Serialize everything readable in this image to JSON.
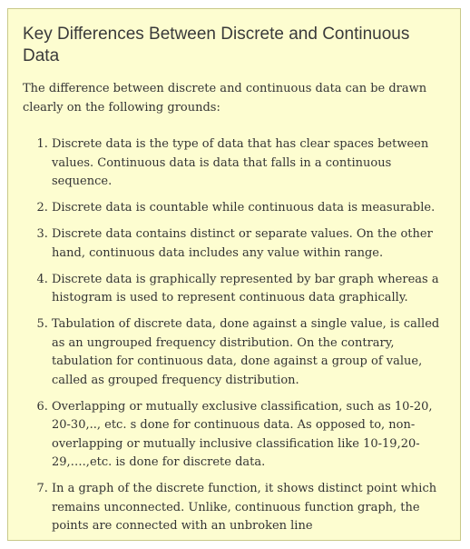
{
  "heading": "Key Differences Between Discrete and Continuous Data",
  "intro": "The difference between discrete and continuous data can be drawn clearly on the following grounds:",
  "points": [
    "Discrete data is the type of data that has clear spaces between values. Continuous data is data that falls in a continuous sequence.",
    "Discrete data is countable while continuous data is measurable.",
    "Discrete data contains distinct or separate values. On the other hand, continuous data includes any value within range.",
    "Discrete data is graphically represented by bar graph whereas a histogram is used to represent continuous data graphically.",
    "Tabulation of discrete data, done against a single value, is called as an ungrouped frequency distribution. On the contrary, tabulation for continuous data, done against a group of value, called as grouped frequency distribution.",
    "Overlapping or mutually exclusive classification, such as 10-20, 20-30,.., etc. s done for continuous data. As opposed to, non-overlapping or mutually inclusive classification like 10-19,20-29,….,etc. is done for discrete data.",
    "In a graph of the discrete function, it shows distinct point which remains unconnected. Unlike, continuous function graph, the points are connected with an unbroken line"
  ],
  "colors": {
    "box_background": "#fdfdd0",
    "box_border": "#c9c98a"
  }
}
